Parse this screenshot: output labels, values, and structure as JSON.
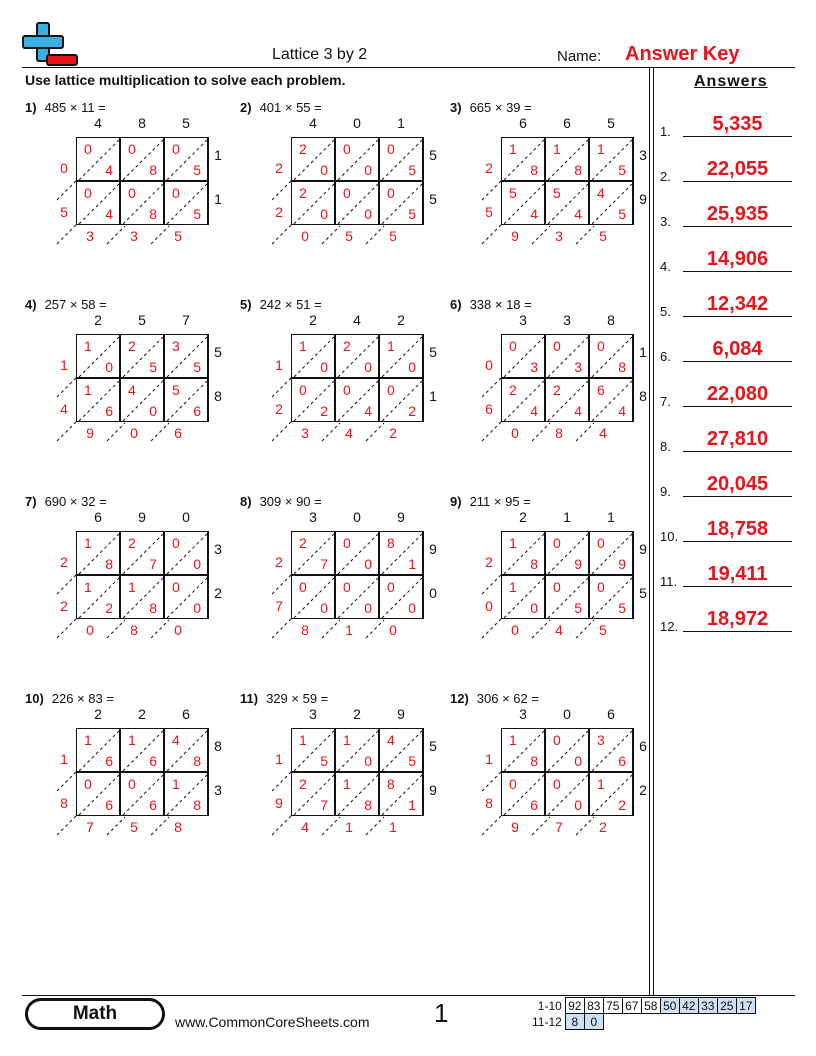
{
  "header": {
    "title": "Lattice 3 by 2",
    "name_label": "Name:",
    "answer_key": "Answer Key",
    "instructions": "Use lattice multiplication to solve each problem."
  },
  "answers_panel": {
    "title": "Answers",
    "items": [
      {
        "num": "1.",
        "value": "5,335"
      },
      {
        "num": "2.",
        "value": "22,055"
      },
      {
        "num": "3.",
        "value": "25,935"
      },
      {
        "num": "4.",
        "value": "14,906"
      },
      {
        "num": "5.",
        "value": "12,342"
      },
      {
        "num": "6.",
        "value": "6,084"
      },
      {
        "num": "7.",
        "value": "22,080"
      },
      {
        "num": "8.",
        "value": "27,810"
      },
      {
        "num": "9.",
        "value": "20,045"
      },
      {
        "num": "10.",
        "value": "18,758"
      },
      {
        "num": "11.",
        "value": "19,411"
      },
      {
        "num": "12.",
        "value": "18,972"
      }
    ]
  },
  "problems": [
    {
      "label": "1)",
      "expr": "485 × 11 =",
      "top": [
        "4",
        "8",
        "5"
      ],
      "right": [
        "1",
        "1"
      ],
      "cells": [
        [
          [
            "0",
            "4"
          ],
          [
            "0",
            "8"
          ],
          [
            "0",
            "5"
          ]
        ],
        [
          [
            "0",
            "4"
          ],
          [
            "0",
            "8"
          ],
          [
            "0",
            "5"
          ]
        ]
      ],
      "left": [
        "0",
        "5"
      ],
      "bottom": [
        "3",
        "3",
        "5"
      ]
    },
    {
      "label": "2)",
      "expr": "401 × 55 =",
      "top": [
        "4",
        "0",
        "1"
      ],
      "right": [
        "5",
        "5"
      ],
      "cells": [
        [
          [
            "2",
            "0"
          ],
          [
            "0",
            "0"
          ],
          [
            "0",
            "5"
          ]
        ],
        [
          [
            "2",
            "0"
          ],
          [
            "0",
            "0"
          ],
          [
            "0",
            "5"
          ]
        ]
      ],
      "left": [
        "2",
        "2"
      ],
      "bottom": [
        "0",
        "5",
        "5"
      ]
    },
    {
      "label": "3)",
      "expr": "665 × 39 =",
      "top": [
        "6",
        "6",
        "5"
      ],
      "right": [
        "3",
        "9"
      ],
      "cells": [
        [
          [
            "1",
            "8"
          ],
          [
            "1",
            "8"
          ],
          [
            "1",
            "5"
          ]
        ],
        [
          [
            "5",
            "4"
          ],
          [
            "5",
            "4"
          ],
          [
            "4",
            "5"
          ]
        ]
      ],
      "left": [
        "2",
        "5"
      ],
      "bottom": [
        "9",
        "3",
        "5"
      ]
    },
    {
      "label": "4)",
      "expr": "257 × 58 =",
      "top": [
        "2",
        "5",
        "7"
      ],
      "right": [
        "5",
        "8"
      ],
      "cells": [
        [
          [
            "1",
            "0"
          ],
          [
            "2",
            "5"
          ],
          [
            "3",
            "5"
          ]
        ],
        [
          [
            "1",
            "6"
          ],
          [
            "4",
            "0"
          ],
          [
            "5",
            "6"
          ]
        ]
      ],
      "left": [
        "1",
        "4"
      ],
      "bottom": [
        "9",
        "0",
        "6"
      ]
    },
    {
      "label": "5)",
      "expr": "242 × 51 =",
      "top": [
        "2",
        "4",
        "2"
      ],
      "right": [
        "5",
        "1"
      ],
      "cells": [
        [
          [
            "1",
            "0"
          ],
          [
            "2",
            "0"
          ],
          [
            "1",
            "0"
          ]
        ],
        [
          [
            "0",
            "2"
          ],
          [
            "0",
            "4"
          ],
          [
            "0",
            "2"
          ]
        ]
      ],
      "left": [
        "1",
        "2"
      ],
      "bottom": [
        "3",
        "4",
        "2"
      ]
    },
    {
      "label": "6)",
      "expr": "338 × 18 =",
      "top": [
        "3",
        "3",
        "8"
      ],
      "right": [
        "1",
        "8"
      ],
      "cells": [
        [
          [
            "0",
            "3"
          ],
          [
            "0",
            "3"
          ],
          [
            "0",
            "8"
          ]
        ],
        [
          [
            "2",
            "4"
          ],
          [
            "2",
            "4"
          ],
          [
            "6",
            "4"
          ]
        ]
      ],
      "left": [
        "0",
        "6"
      ],
      "bottom": [
        "0",
        "8",
        "4"
      ]
    },
    {
      "label": "7)",
      "expr": "690 × 32 =",
      "top": [
        "6",
        "9",
        "0"
      ],
      "right": [
        "3",
        "2"
      ],
      "cells": [
        [
          [
            "1",
            "8"
          ],
          [
            "2",
            "7"
          ],
          [
            "0",
            "0"
          ]
        ],
        [
          [
            "1",
            "2"
          ],
          [
            "1",
            "8"
          ],
          [
            "0",
            "0"
          ]
        ]
      ],
      "left": [
        "2",
        "2"
      ],
      "bottom": [
        "0",
        "8",
        "0"
      ]
    },
    {
      "label": "8)",
      "expr": "309 × 90 =",
      "top": [
        "3",
        "0",
        "9"
      ],
      "right": [
        "9",
        "0"
      ],
      "cells": [
        [
          [
            "2",
            "7"
          ],
          [
            "0",
            "0"
          ],
          [
            "8",
            "1"
          ]
        ],
        [
          [
            "0",
            "0"
          ],
          [
            "0",
            "0"
          ],
          [
            "0",
            "0"
          ]
        ]
      ],
      "left": [
        "2",
        "7"
      ],
      "bottom": [
        "8",
        "1",
        "0"
      ]
    },
    {
      "label": "9)",
      "expr": "211 × 95 =",
      "top": [
        "2",
        "1",
        "1"
      ],
      "right": [
        "9",
        "5"
      ],
      "cells": [
        [
          [
            "1",
            "8"
          ],
          [
            "0",
            "9"
          ],
          [
            "0",
            "9"
          ]
        ],
        [
          [
            "1",
            "0"
          ],
          [
            "0",
            "5"
          ],
          [
            "0",
            "5"
          ]
        ]
      ],
      "left": [
        "2",
        "0"
      ],
      "bottom": [
        "0",
        "4",
        "5"
      ]
    },
    {
      "label": "10)",
      "expr": "226 × 83 =",
      "top": [
        "2",
        "2",
        "6"
      ],
      "right": [
        "8",
        "3"
      ],
      "cells": [
        [
          [
            "1",
            "6"
          ],
          [
            "1",
            "6"
          ],
          [
            "4",
            "8"
          ]
        ],
        [
          [
            "0",
            "6"
          ],
          [
            "0",
            "6"
          ],
          [
            "1",
            "8"
          ]
        ]
      ],
      "left": [
        "1",
        "8"
      ],
      "bottom": [
        "7",
        "5",
        "8"
      ]
    },
    {
      "label": "11)",
      "expr": "329 × 59 =",
      "top": [
        "3",
        "2",
        "9"
      ],
      "right": [
        "5",
        "9"
      ],
      "cells": [
        [
          [
            "1",
            "5"
          ],
          [
            "1",
            "0"
          ],
          [
            "4",
            "5"
          ]
        ],
        [
          [
            "2",
            "7"
          ],
          [
            "1",
            "8"
          ],
          [
            "8",
            "1"
          ]
        ]
      ],
      "left": [
        "1",
        "9"
      ],
      "bottom": [
        "4",
        "1",
        "1"
      ]
    },
    {
      "label": "12)",
      "expr": "306 × 62 =",
      "top": [
        "3",
        "0",
        "6"
      ],
      "right": [
        "6",
        "2"
      ],
      "cells": [
        [
          [
            "1",
            "8"
          ],
          [
            "0",
            "0"
          ],
          [
            "3",
            "6"
          ]
        ],
        [
          [
            "0",
            "6"
          ],
          [
            "0",
            "0"
          ],
          [
            "1",
            "2"
          ]
        ]
      ],
      "left": [
        "1",
        "8"
      ],
      "bottom": [
        "9",
        "7",
        "2"
      ]
    }
  ],
  "footer": {
    "subject": "Math",
    "url": "www.CommonCoreSheets.com",
    "page": "1",
    "score_rows": [
      {
        "label": "1-10",
        "scores": [
          "92",
          "83",
          "75",
          "67",
          "58",
          "50",
          "42",
          "33",
          "25",
          "17"
        ]
      },
      {
        "label": "11-12",
        "scores": [
          "8",
          "0"
        ]
      }
    ]
  },
  "colors": {
    "answer": "#e8141b",
    "score_highlight": "#cfe0f7"
  }
}
